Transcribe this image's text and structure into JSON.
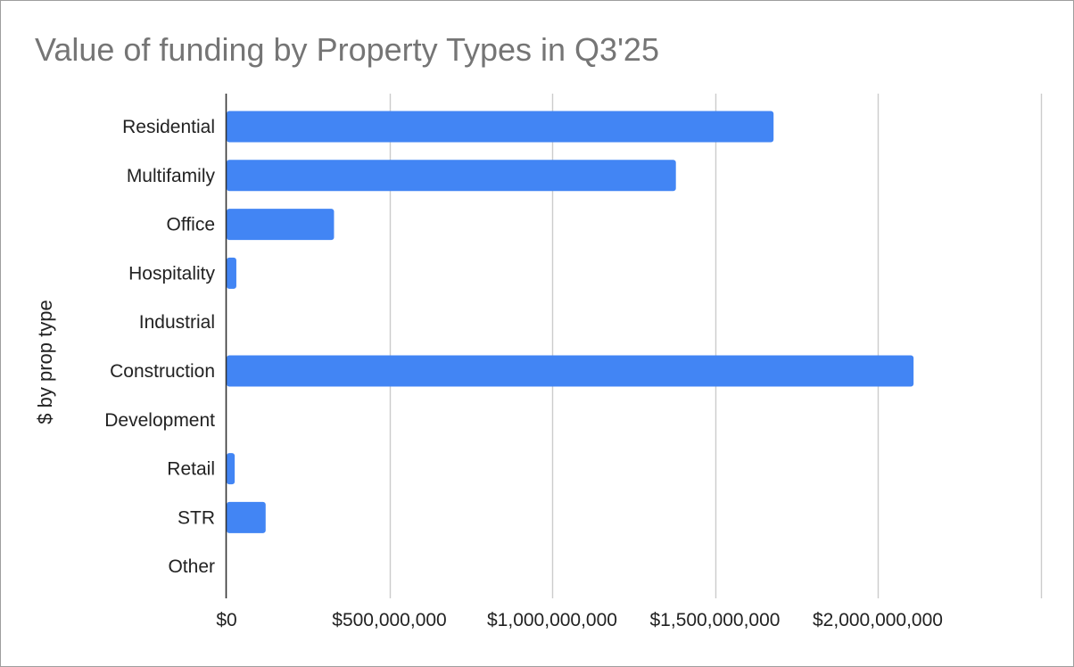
{
  "chart_data": {
    "type": "bar",
    "orientation": "horizontal",
    "title": "Value of funding by Property Types in Q3'25",
    "xlabel": "",
    "ylabel": "$ by prop type",
    "categories": [
      "Residential",
      "Multifamily",
      "Office",
      "Hospitality",
      "Industrial",
      "Construction",
      "Development",
      "Retail",
      "STR",
      "Other"
    ],
    "values": [
      1680000000,
      1380000000,
      330000000,
      30000000,
      0,
      2110000000,
      0,
      25000000,
      120000000,
      0
    ],
    "xlim": [
      0,
      2500000000
    ],
    "x_ticks": [
      0,
      500000000,
      1000000000,
      1500000000,
      2000000000
    ],
    "x_tick_labels": [
      "$0",
      "$500,000,000",
      "$1,000,000,000",
      "$1,500,000,000",
      "$2,000,000,000"
    ],
    "grid": true,
    "legend": "none",
    "colors": {
      "bar": "#4285f4",
      "grid": "#cccccc",
      "axis": "#333333",
      "title": "#757575"
    }
  }
}
